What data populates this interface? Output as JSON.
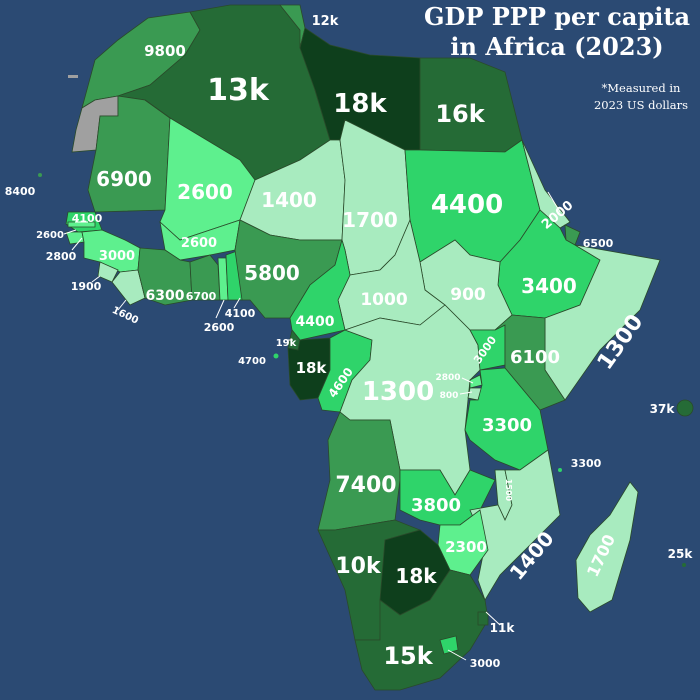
{
  "title_line1": "GDP PPP per capita",
  "title_line2": "in Africa (2023)",
  "note_line1": "*Measured in",
  "note_line2": "2023 US dollars",
  "colors": {
    "ocean": "#2b4a73",
    "darkest": "#0e3f1c",
    "dark": "#256b36",
    "medium": "#3a9a52",
    "bright": "#2fd46a",
    "light": "#5ef08e",
    "pale": "#a8ebbf",
    "no_data": "#a0a0a0"
  },
  "countries": [
    {
      "name_key": "morocco",
      "value": "9800",
      "tier": "medium"
    },
    {
      "name_key": "tunisia",
      "value": "12k",
      "tier": "medium"
    },
    {
      "name_key": "algeria",
      "value": "13k",
      "tier": "dark"
    },
    {
      "name_key": "libya",
      "value": "18k",
      "tier": "darkest"
    },
    {
      "name_key": "egypt",
      "value": "16k",
      "tier": "dark"
    },
    {
      "name_key": "mauritania",
      "value": "6900",
      "tier": "medium"
    },
    {
      "name_key": "mali",
      "value": "2600",
      "tier": "light"
    },
    {
      "name_key": "niger",
      "value": "1400",
      "tier": "pale"
    },
    {
      "name_key": "chad",
      "value": "1700",
      "tier": "pale"
    },
    {
      "name_key": "sudan",
      "value": "4400",
      "tier": "bright"
    },
    {
      "name_key": "eritrea",
      "value": "2000",
      "tier": "pale"
    },
    {
      "name_key": "djibouti",
      "value": "6500",
      "tier": "medium"
    },
    {
      "name_key": "ethiopia",
      "value": "3400",
      "tier": "bright"
    },
    {
      "name_key": "somalia",
      "value": "1300",
      "tier": "pale"
    },
    {
      "name_key": "south_sudan",
      "value": "900",
      "tier": "pale"
    },
    {
      "name_key": "car",
      "value": "1000",
      "tier": "pale"
    },
    {
      "name_key": "nigeria",
      "value": "5800",
      "tier": "medium"
    },
    {
      "name_key": "cameroon",
      "value": "4400",
      "tier": "bright"
    },
    {
      "name_key": "eq_guinea",
      "value": "19k",
      "tier": "dark"
    },
    {
      "name_key": "gabon",
      "value": "18k",
      "tier": "darkest"
    },
    {
      "name_key": "congo",
      "value": "4600",
      "tier": "bright"
    },
    {
      "name_key": "drc",
      "value": "1300",
      "tier": "pale"
    },
    {
      "name_key": "uganda",
      "value": "3000",
      "tier": "bright"
    },
    {
      "name_key": "kenya",
      "value": "6100",
      "tier": "medium"
    },
    {
      "name_key": "rwanda",
      "value": "2800",
      "tier": "light"
    },
    {
      "name_key": "burundi",
      "value": "800",
      "tier": "pale"
    },
    {
      "name_key": "tanzania",
      "value": "3300",
      "tier": "bright"
    },
    {
      "name_key": "angola",
      "value": "7400",
      "tier": "medium"
    },
    {
      "name_key": "zambia",
      "value": "3800",
      "tier": "bright"
    },
    {
      "name_key": "malawi",
      "value": "1500",
      "tier": "pale"
    },
    {
      "name_key": "mozambique",
      "value": "1400",
      "tier": "pale"
    },
    {
      "name_key": "zimbabwe",
      "value": "2300",
      "tier": "light"
    },
    {
      "name_key": "namibia",
      "value": "10k",
      "tier": "dark"
    },
    {
      "name_key": "botswana",
      "value": "18k",
      "tier": "darkest"
    },
    {
      "name_key": "south_africa",
      "value": "15k",
      "tier": "dark"
    },
    {
      "name_key": "eswatini",
      "value": "11k",
      "tier": "dark"
    },
    {
      "name_key": "lesotho",
      "value": "3000",
      "tier": "bright"
    },
    {
      "name_key": "madagascar",
      "value": "1700",
      "tier": "pale"
    },
    {
      "name_key": "senegal",
      "value": "4100",
      "tier": "bright"
    },
    {
      "name_key": "gambia",
      "value": "2600",
      "tier": "light"
    },
    {
      "name_key": "guinea_bissau",
      "value": "2800",
      "tier": "light"
    },
    {
      "name_key": "guinea",
      "value": "3000",
      "tier": "light"
    },
    {
      "name_key": "sierra_leone",
      "value": "1900",
      "tier": "pale"
    },
    {
      "name_key": "liberia",
      "value": "1600",
      "tier": "pale"
    },
    {
      "name_key": "burkina_faso",
      "value": "2600",
      "tier": "light"
    },
    {
      "name_key": "ivory_coast",
      "value": "6300",
      "tier": "medium"
    },
    {
      "name_key": "ghana",
      "value": "6700",
      "tier": "medium"
    },
    {
      "name_key": "togo",
      "value": "2600",
      "tier": "light"
    },
    {
      "name_key": "benin",
      "value": "4100",
      "tier": "bright"
    },
    {
      "name_key": "cape_verde",
      "value": "8400",
      "tier": "medium"
    },
    {
      "name_key": "sao_tome",
      "value": "4700",
      "tier": "bright"
    },
    {
      "name_key": "seychelles",
      "value": "37k",
      "tier": "dark"
    },
    {
      "name_key": "comoros",
      "value": "3300",
      "tier": "bright"
    },
    {
      "name_key": "mauritius",
      "value": "25k",
      "tier": "dark"
    }
  ]
}
